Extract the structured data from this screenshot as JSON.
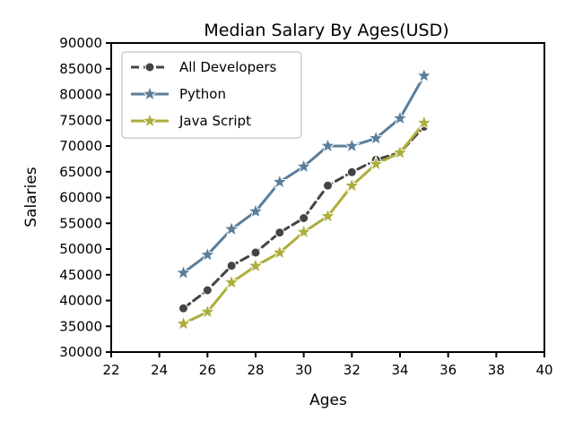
{
  "chart_data": {
    "type": "line",
    "title": "Median Salary By Ages(USD)",
    "xlabel": "Ages",
    "ylabel": "Salaries",
    "xlim": [
      22,
      40
    ],
    "ylim": [
      30000,
      90000
    ],
    "xticks": [
      22,
      24,
      26,
      28,
      30,
      32,
      34,
      36,
      38,
      40
    ],
    "yticks": [
      30000,
      35000,
      40000,
      45000,
      50000,
      55000,
      60000,
      65000,
      70000,
      75000,
      80000,
      85000,
      90000
    ],
    "grid": false,
    "legend_position": "top-left",
    "x": [
      25,
      26,
      27,
      28,
      29,
      30,
      31,
      32,
      33,
      34,
      35
    ],
    "series": [
      {
        "name": "All Developers",
        "values": [
          38496,
          42000,
          46752,
          49320,
          53200,
          56000,
          62316,
          64928,
          67317,
          68748,
          73752
        ],
        "color": "#444444",
        "marker": "circle",
        "linestyle": "dashed"
      },
      {
        "name": "Python",
        "values": [
          45372,
          48876,
          53850,
          57287,
          63016,
          65998,
          70003,
          70000,
          71496,
          75370,
          83640
        ],
        "color": "#5a7d9a",
        "marker": "star",
        "linestyle": "solid"
      },
      {
        "name": "Java Script",
        "values": [
          35500,
          37800,
          43500,
          46700,
          49300,
          53300,
          56360,
          62300,
          66500,
          68700,
          74500
        ],
        "color": "#adad3b",
        "marker": "star",
        "linestyle": "solid"
      }
    ]
  }
}
